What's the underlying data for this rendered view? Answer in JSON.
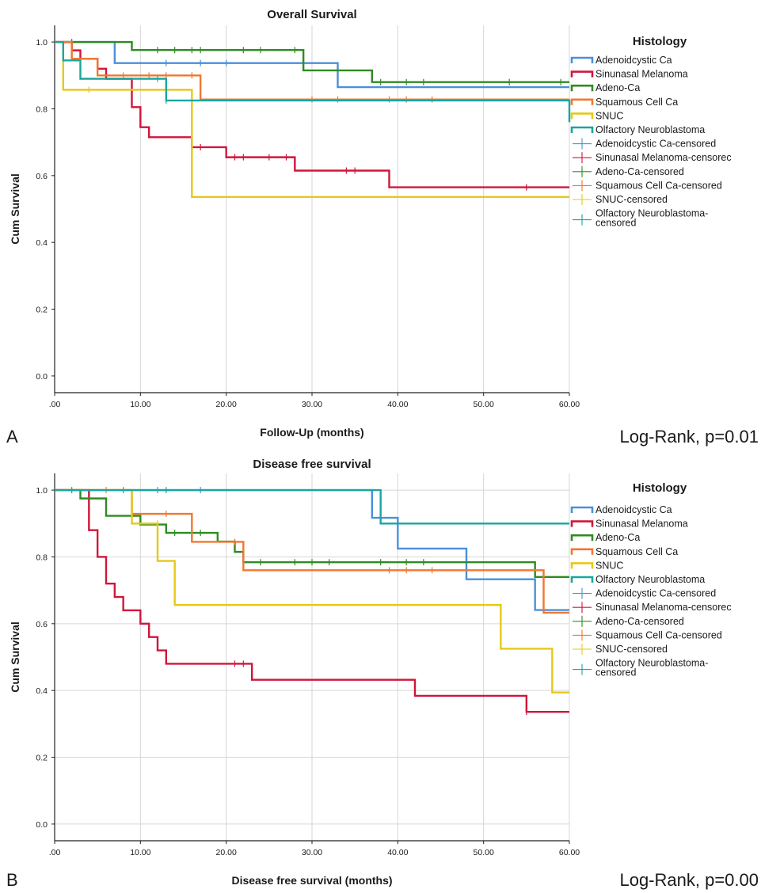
{
  "chart_data": [
    {
      "type": "line",
      "panel_label": "A",
      "title": "Overall Survival",
      "xlabel": "Follow-Up (months)",
      "ylabel": "Cum Survival",
      "stat_text": "Log-Rank, p=0.01",
      "xlim": [
        0,
        60
      ],
      "ylim": [
        -0.05,
        1.05
      ],
      "x_ticks": [
        ".00",
        "10.00",
        "20.00",
        "30.00",
        "40.00",
        "50.00",
        "60.00"
      ],
      "y_ticks": [
        "0.0",
        "0.2",
        "0.4",
        "0.6",
        "0.8",
        "1.0"
      ],
      "grid": "vertical",
      "legend_title": "Histology",
      "legend_position": "right",
      "legend_entries": [
        {
          "label": "Adenoidcystic Ca",
          "kind": "line",
          "color": "#4a90d9"
        },
        {
          "label": "Sinunasal Melanoma",
          "kind": "line",
          "color": "#d0163a"
        },
        {
          "label": "Adeno-Ca",
          "kind": "line",
          "color": "#2e8b22"
        },
        {
          "label": "Squamous Cell Ca",
          "kind": "line",
          "color": "#f07830"
        },
        {
          "label": "SNUC",
          "kind": "line",
          "color": "#e6c817"
        },
        {
          "label": "Olfactory Neuroblastoma",
          "kind": "line",
          "color": "#1aa6a0"
        },
        {
          "label": "Adenoidcystic Ca-censored",
          "kind": "censor",
          "color": "#4a90d9"
        },
        {
          "label": "Sinunasal Melanoma-censorec",
          "kind": "censor",
          "color": "#d0163a"
        },
        {
          "label": "Adeno-Ca-censored",
          "kind": "censor",
          "color": "#2e8b22"
        },
        {
          "label": "Squamous Cell Ca-censored",
          "kind": "censor",
          "color": "#f07830"
        },
        {
          "label": "SNUC-censored",
          "kind": "censor",
          "color": "#e6c817"
        },
        {
          "label": "Olfactory Neuroblastoma-censored",
          "kind": "censor",
          "color": "#1aa6a0",
          "lines": [
            "Olfactory Neuroblastoma-",
            "censored"
          ]
        }
      ],
      "series": [
        {
          "name": "Adenoidcystic Ca",
          "color": "#4a90d9",
          "steps": [
            [
              0,
              1.0
            ],
            [
              7,
              0.937
            ],
            [
              33,
              0.865
            ],
            [
              60,
              0.865
            ]
          ],
          "censored": [
            [
              13,
              0.937
            ],
            [
              17,
              0.937
            ],
            [
              20,
              0.937
            ]
          ]
        },
        {
          "name": "Sinunasal Melanoma",
          "color": "#d0163a",
          "steps": [
            [
              0,
              1.0
            ],
            [
              2,
              0.975
            ],
            [
              3,
              0.95
            ],
            [
              5,
              0.92
            ],
            [
              6,
              0.89
            ],
            [
              9,
              0.805
            ],
            [
              10,
              0.745
            ],
            [
              11,
              0.715
            ],
            [
              16,
              0.685
            ],
            [
              20,
              0.655
            ],
            [
              28,
              0.615
            ],
            [
              39,
              0.565
            ],
            [
              60,
              0.565
            ]
          ],
          "censored": [
            [
              16,
              0.685
            ],
            [
              17,
              0.685
            ],
            [
              21,
              0.655
            ],
            [
              22,
              0.655
            ],
            [
              25,
              0.655
            ],
            [
              27,
              0.655
            ],
            [
              34,
              0.615
            ],
            [
              35,
              0.615
            ],
            [
              55,
              0.565
            ]
          ]
        },
        {
          "name": "Adeno-Ca",
          "color": "#2e8b22",
          "steps": [
            [
              0,
              1.0
            ],
            [
              9,
              0.976
            ],
            [
              29,
              0.915
            ],
            [
              37,
              0.88
            ],
            [
              60,
              0.88
            ]
          ],
          "censored": [
            [
              2,
              1.0
            ],
            [
              12,
              0.976
            ],
            [
              14,
              0.976
            ],
            [
              16,
              0.976
            ],
            [
              17,
              0.976
            ],
            [
              22,
              0.976
            ],
            [
              24,
              0.976
            ],
            [
              28,
              0.976
            ],
            [
              38,
              0.88
            ],
            [
              41,
              0.88
            ],
            [
              43,
              0.88
            ],
            [
              53,
              0.88
            ],
            [
              59,
              0.88
            ]
          ]
        },
        {
          "name": "Squamous Cell Ca",
          "color": "#f07830",
          "steps": [
            [
              0,
              1.0
            ],
            [
              2,
              0.95
            ],
            [
              5,
              0.9
            ],
            [
              17,
              0.828
            ],
            [
              60,
              0.828
            ]
          ],
          "censored": [
            [
              8,
              0.9
            ],
            [
              11,
              0.9
            ],
            [
              13,
              0.9
            ],
            [
              16,
              0.9
            ],
            [
              30,
              0.828
            ],
            [
              33,
              0.828
            ],
            [
              39,
              0.828
            ],
            [
              41,
              0.828
            ],
            [
              44,
              0.828
            ]
          ]
        },
        {
          "name": "SNUC",
          "color": "#e6c817",
          "steps": [
            [
              0,
              1.0
            ],
            [
              1,
              0.857
            ],
            [
              16,
              0.536
            ],
            [
              60,
              0.536
            ]
          ],
          "censored": [
            [
              4,
              0.857
            ]
          ]
        },
        {
          "name": "Olfactory Neuroblastoma",
          "color": "#1aa6a0",
          "steps": [
            [
              0,
              1.0
            ],
            [
              1,
              0.945
            ],
            [
              3,
              0.89
            ],
            [
              13,
              0.825
            ],
            [
              60,
              0.825
            ],
            [
              60,
              0.76
            ]
          ],
          "censored": [
            [
              12,
              0.89
            ],
            [
              13,
              0.825
            ]
          ]
        }
      ]
    },
    {
      "type": "line",
      "panel_label": "B",
      "title": "Disease free survival",
      "xlabel": "Disease free survival (months)",
      "ylabel": "Cum Survival",
      "stat_text": "Log-Rank, p=0.00",
      "xlim": [
        0,
        60
      ],
      "ylim": [
        -0.05,
        1.05
      ],
      "x_ticks": [
        ".00",
        "10.00",
        "20.00",
        "30.00",
        "40.00",
        "50.00",
        "60.00"
      ],
      "y_ticks": [
        "0.0",
        "0.2",
        "0.4",
        "0.6",
        "0.8",
        "1.0"
      ],
      "grid": "both",
      "legend_title": "Histology",
      "legend_position": "right",
      "legend_entries": [
        {
          "label": "Adenoidcystic Ca",
          "kind": "line",
          "color": "#4a90d9"
        },
        {
          "label": "Sinunasal Melanoma",
          "kind": "line",
          "color": "#d0163a"
        },
        {
          "label": "Adeno-Ca",
          "kind": "line",
          "color": "#2e8b22"
        },
        {
          "label": "Squamous Cell Ca",
          "kind": "line",
          "color": "#f07830"
        },
        {
          "label": "SNUC",
          "kind": "line",
          "color": "#e6c817"
        },
        {
          "label": "Olfactory Neuroblastoma",
          "kind": "line",
          "color": "#1aa6a0"
        },
        {
          "label": "Adenoidcystic Ca-censored",
          "kind": "censor",
          "color": "#4a90d9"
        },
        {
          "label": "Sinunasal Melanoma-censorec",
          "kind": "censor",
          "color": "#d0163a"
        },
        {
          "label": "Adeno-Ca-censored",
          "kind": "censor",
          "color": "#2e8b22"
        },
        {
          "label": "Squamous Cell Ca-censored",
          "kind": "censor",
          "color": "#f07830"
        },
        {
          "label": "SNUC-censored",
          "kind": "censor",
          "color": "#e6c817"
        },
        {
          "label": "Olfactory Neuroblastoma-censored",
          "kind": "censor",
          "color": "#1aa6a0",
          "lines": [
            "Olfactory Neuroblastoma-",
            "censored"
          ]
        }
      ],
      "series": [
        {
          "name": "Adenoidcystic Ca",
          "color": "#4a90d9",
          "steps": [
            [
              0,
              1.0
            ],
            [
              37,
              0.917
            ],
            [
              40,
              0.825
            ],
            [
              48,
              0.733
            ],
            [
              56,
              0.641
            ],
            [
              60,
              0.641
            ]
          ],
          "censored": [
            [
              12,
              1.0
            ],
            [
              17,
              1.0
            ]
          ]
        },
        {
          "name": "Sinunasal Melanoma",
          "color": "#d0163a",
          "steps": [
            [
              0,
              1.0
            ],
            [
              4,
              0.88
            ],
            [
              5,
              0.8
            ],
            [
              6,
              0.72
            ],
            [
              7,
              0.68
            ],
            [
              8,
              0.64
            ],
            [
              10,
              0.6
            ],
            [
              11,
              0.56
            ],
            [
              12,
              0.52
            ],
            [
              13,
              0.48
            ],
            [
              23,
              0.432
            ],
            [
              42,
              0.384
            ],
            [
              55,
              0.336
            ],
            [
              60,
              0.336
            ]
          ],
          "censored": [
            [
              21,
              0.48
            ],
            [
              22,
              0.48
            ],
            [
              55,
              0.336
            ]
          ]
        },
        {
          "name": "Adeno-Ca",
          "color": "#2e8b22",
          "steps": [
            [
              0,
              1.0
            ],
            [
              3,
              0.975
            ],
            [
              6,
              0.923
            ],
            [
              10,
              0.897
            ],
            [
              13,
              0.872
            ],
            [
              19,
              0.846
            ],
            [
              21,
              0.815
            ],
            [
              22,
              0.784
            ],
            [
              56,
              0.74
            ],
            [
              60,
              0.74
            ]
          ],
          "censored": [
            [
              14,
              0.872
            ],
            [
              16,
              0.872
            ],
            [
              17,
              0.872
            ],
            [
              24,
              0.784
            ],
            [
              28,
              0.784
            ],
            [
              30,
              0.784
            ],
            [
              32,
              0.784
            ],
            [
              38,
              0.784
            ],
            [
              41,
              0.784
            ],
            [
              43,
              0.784
            ]
          ]
        },
        {
          "name": "Squamous Cell Ca",
          "color": "#f07830",
          "steps": [
            [
              0,
              1.0
            ],
            [
              9,
              0.929
            ],
            [
              16,
              0.845
            ],
            [
              22,
              0.76
            ],
            [
              57,
              0.633
            ],
            [
              60,
              0.633
            ]
          ],
          "censored": [
            [
              6,
              1.0
            ],
            [
              13,
              0.929
            ],
            [
              21,
              0.845
            ],
            [
              39,
              0.76
            ],
            [
              41,
              0.76
            ],
            [
              44,
              0.76
            ]
          ]
        },
        {
          "name": "SNUC",
          "color": "#e6c817",
          "steps": [
            [
              0,
              1.0
            ],
            [
              9,
              0.9
            ],
            [
              12,
              0.788
            ],
            [
              14,
              0.656
            ],
            [
              52,
              0.525
            ],
            [
              58,
              0.394
            ],
            [
              60,
              0.394
            ]
          ],
          "censored": [
            [
              12,
              0.9
            ]
          ]
        },
        {
          "name": "Olfactory Neuroblastoma",
          "color": "#1aa6a0",
          "steps": [
            [
              0,
              1.0
            ],
            [
              38,
              0.9
            ],
            [
              60,
              0.9
            ]
          ],
          "censored": [
            [
              2,
              1.0
            ],
            [
              8,
              1.0
            ],
            [
              13,
              1.0
            ]
          ]
        }
      ]
    }
  ]
}
